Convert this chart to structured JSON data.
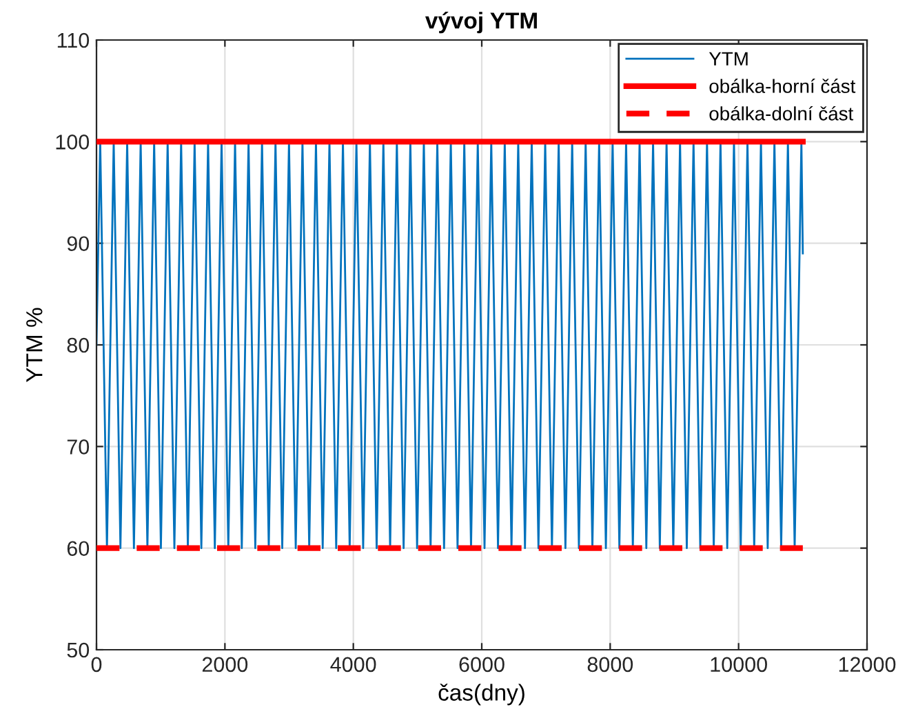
{
  "chart_data": {
    "type": "line",
    "title": "vývoj YTM",
    "xlabel": "čas(dny)",
    "ylabel": "YTM %",
    "xlim": [
      0,
      12000
    ],
    "xticks": [
      0,
      2000,
      4000,
      6000,
      8000,
      10000,
      12000
    ],
    "ylim": [
      50,
      110
    ],
    "yticks": [
      50,
      60,
      70,
      80,
      90,
      100,
      110
    ],
    "grid": true,
    "legend": "top right",
    "series": [
      {
        "name": "YTM",
        "color": "#0072bd",
        "line_style": "solid",
        "x": [
          0,
          58,
          163,
          268,
          373,
          478,
          583,
          688,
          793,
          898,
          1003,
          1108,
          1213,
          1318,
          1423,
          1528,
          1633,
          1738,
          1843,
          1948,
          2053,
          2158,
          2263,
          2368,
          2473,
          2578,
          2683,
          2788,
          2893,
          2998,
          3103,
          3208,
          3313,
          3418,
          3523,
          3628,
          3733,
          3838,
          3943,
          4048,
          4153,
          4258,
          4363,
          4468,
          4573,
          4678,
          4783,
          4888,
          4993,
          5098,
          5203,
          5308,
          5413,
          5518,
          5623,
          5728,
          5833,
          5938,
          6043,
          6148,
          6253,
          6358,
          6463,
          6568,
          6673,
          6778,
          6883,
          6988,
          7093,
          7198,
          7303,
          7408,
          7513,
          7618,
          7723,
          7828,
          7933,
          8038,
          8143,
          8248,
          8353,
          8458,
          8563,
          8668,
          8773,
          8878,
          8983,
          9088,
          9193,
          9298,
          9403,
          9508,
          9613,
          9718,
          9823,
          9928,
          10033,
          10138,
          10243,
          10348,
          10453,
          10558,
          10663,
          10768,
          10873,
          10978,
          11000
        ],
        "values": [
          80,
          100,
          60,
          100,
          60,
          100,
          60,
          100,
          60,
          100,
          60,
          100,
          60,
          100,
          60,
          100,
          60,
          100,
          60,
          100,
          60,
          100,
          60,
          100,
          60,
          100,
          60,
          100,
          60,
          100,
          60,
          100,
          60,
          100,
          60,
          100,
          60,
          100,
          60,
          100,
          60,
          100,
          60,
          100,
          60,
          100,
          60,
          100,
          60,
          100,
          60,
          100,
          60,
          100,
          60,
          100,
          60,
          100,
          60,
          100,
          60,
          100,
          60,
          100,
          60,
          100,
          60,
          100,
          60,
          100,
          60,
          100,
          60,
          100,
          60,
          100,
          60,
          100,
          60,
          100,
          60,
          100,
          60,
          100,
          60,
          100,
          60,
          100,
          60,
          100,
          60,
          100,
          60,
          100,
          60,
          100,
          60,
          100,
          60,
          100,
          60,
          100,
          60,
          100,
          60,
          100,
          89
        ]
      },
      {
        "name": "obálka-horní část",
        "color": "#ff0000",
        "line_style": "solid",
        "x": [
          0,
          11000
        ],
        "values": [
          100,
          100
        ]
      },
      {
        "name": "obálka-dolní část",
        "color": "#ff0000",
        "line_style": "dashed",
        "x": [
          0,
          11000
        ],
        "values": [
          60,
          60
        ]
      }
    ]
  }
}
